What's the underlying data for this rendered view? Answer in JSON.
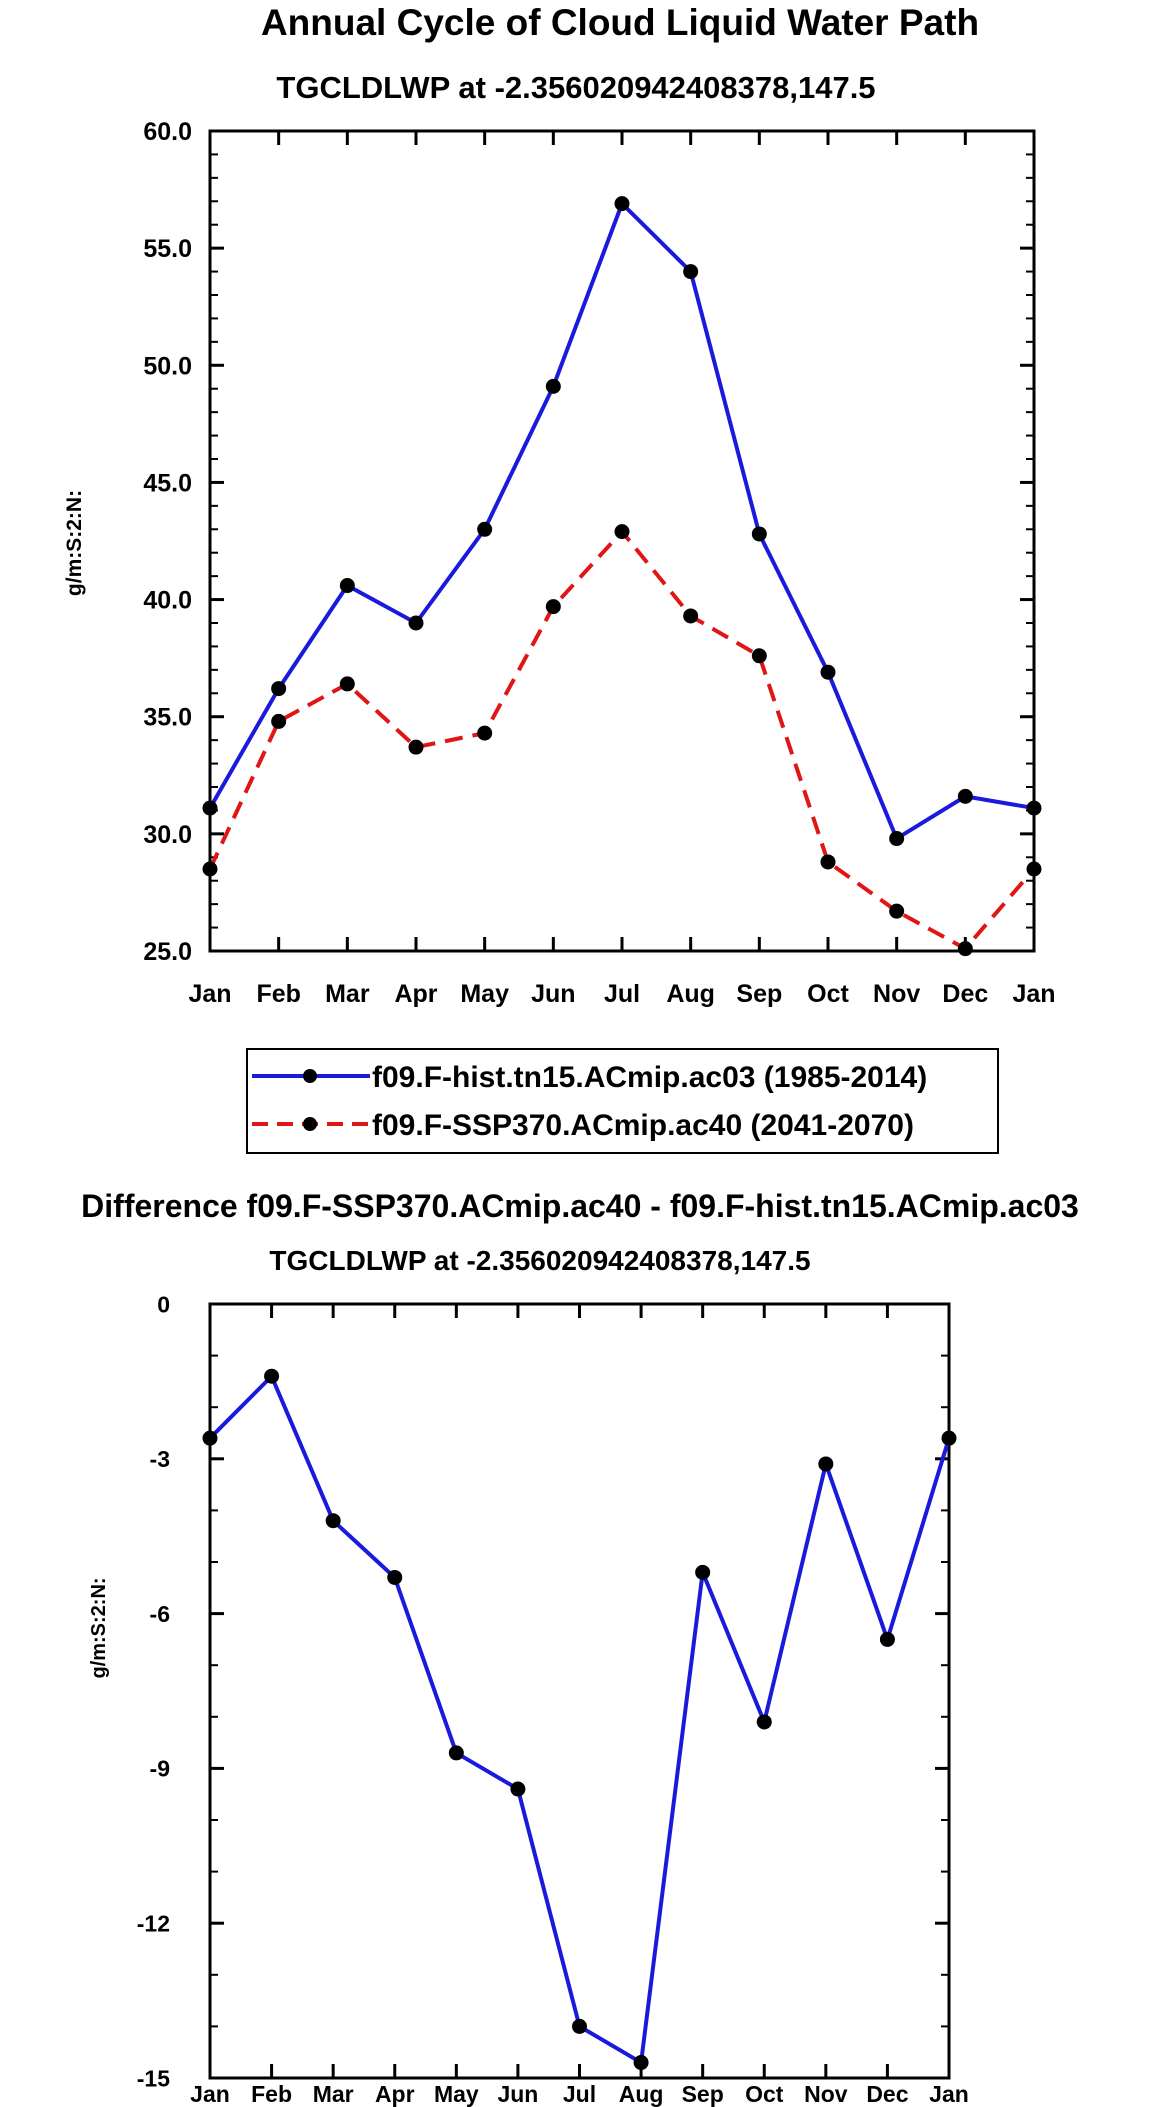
{
  "chart_data": [
    {
      "type": "line",
      "title": "Annual Cycle of Cloud Liquid Water Path",
      "subtitle": "TGCLDLWP at -2.356020942408378,147.5",
      "ylabel": "g/m:S:2:N:",
      "xlabel": "",
      "categories": [
        "Jan",
        "Feb",
        "Mar",
        "Apr",
        "May",
        "Jun",
        "Jul",
        "Aug",
        "Sep",
        "Oct",
        "Nov",
        "Dec",
        "Jan"
      ],
      "ylim": [
        25,
        60
      ],
      "yticks": [
        "25.0",
        "30.0",
        "35.0",
        "40.0",
        "45.0",
        "50.0",
        "55.0",
        "60.0"
      ],
      "legend_position": "bottom",
      "series": [
        {
          "name": "f09.F-hist.tn15.ACmip.ac03 (1985-2014)",
          "color": "#1a1adc",
          "dash": "solid",
          "values": [
            31.1,
            36.2,
            40.6,
            39.0,
            43.0,
            49.1,
            56.9,
            54.0,
            42.8,
            36.9,
            29.8,
            31.6,
            31.1
          ]
        },
        {
          "name": "f09.F-SSP370.ACmip.ac40 (2041-2070)",
          "color": "#e01616",
          "dash": "dashed",
          "values": [
            28.5,
            34.8,
            36.4,
            33.7,
            34.3,
            39.7,
            42.9,
            39.3,
            37.6,
            28.8,
            26.7,
            25.1,
            28.5
          ]
        }
      ]
    },
    {
      "type": "line",
      "title": "Difference f09.F-SSP370.ACmip.ac40 - f09.F-hist.tn15.ACmip.ac03",
      "subtitle": "TGCLDLWP at -2.356020942408378,147.5",
      "ylabel": "g/m:S:2:N:",
      "xlabel": "",
      "categories": [
        "Jan",
        "Feb",
        "Mar",
        "Apr",
        "May",
        "Jun",
        "Jul",
        "Aug",
        "Sep",
        "Oct",
        "Nov",
        "Dec",
        "Jan"
      ],
      "ylim": [
        -15,
        0
      ],
      "yticks": [
        "-15",
        "-12",
        "-9",
        "-6",
        "-3",
        "0"
      ],
      "series": [
        {
          "name": "Difference",
          "color": "#1a1adc",
          "dash": "solid",
          "values": [
            -2.6,
            -1.4,
            -4.2,
            -5.3,
            -8.7,
            -9.4,
            -14.0,
            -14.7,
            -5.2,
            -8.1,
            -3.1,
            -6.5,
            -2.6
          ]
        }
      ]
    }
  ]
}
